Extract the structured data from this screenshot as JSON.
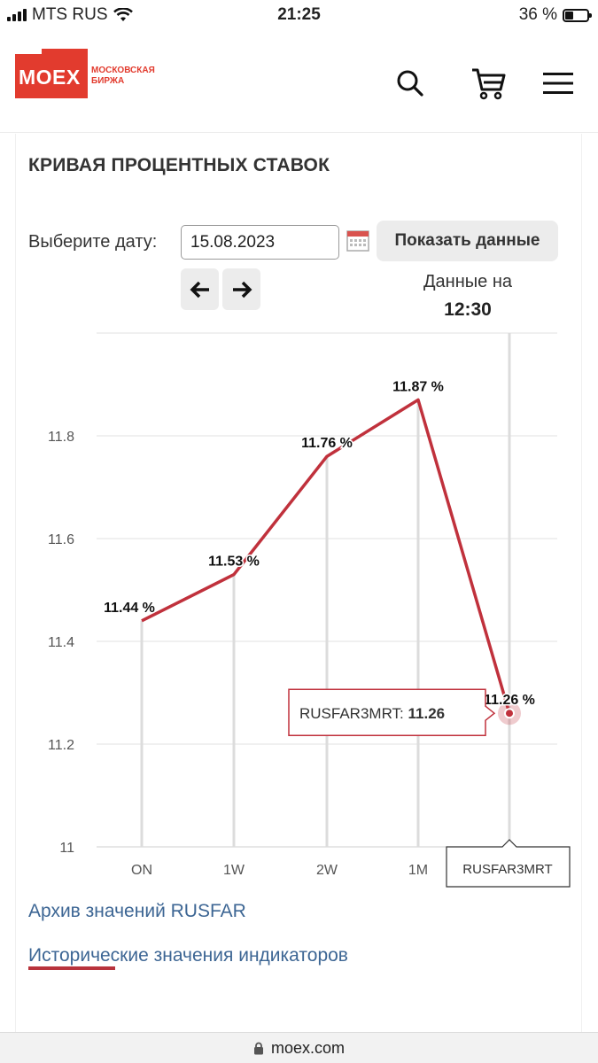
{
  "status_bar": {
    "carrier": "MTS RUS",
    "time": "21:25",
    "battery": "36 %",
    "battery_level": 0.36
  },
  "header": {
    "logo_text": "MOEX",
    "logo_sub_1": "МОСКОВСКАЯ",
    "logo_sub_2": "БИРЖА",
    "icons": [
      "search-icon",
      "cart-icon",
      "menu-icon"
    ]
  },
  "page": {
    "title": "КРИВАЯ ПРОЦЕНТНЫХ СТАВОК",
    "date_label": "Выберите дату:",
    "date_value": "15.08.2023",
    "show_button": "Показать данные",
    "data_on_label": "Данные на",
    "data_on_time": "12:30",
    "links": [
      "Архив значений RUSFAR",
      "Исторические значения индикаторов"
    ]
  },
  "chart_data": {
    "type": "line",
    "categories": [
      "ON",
      "1W",
      "2W",
      "1M",
      "RUSFAR3MRT"
    ],
    "series": [
      {
        "values": [
          11.44,
          11.53,
          11.76,
          11.87,
          11.26
        ],
        "color": "#c0313c"
      }
    ],
    "data_labels": [
      "11.44 %",
      "11.53 %",
      "11.76 %",
      "11.87 %",
      "11.26 %"
    ],
    "y_ticks": [
      "11",
      "11.2",
      "11.4",
      "11.6",
      "11.8"
    ],
    "ylim": [
      11,
      11.9
    ],
    "grid": true,
    "tooltip": {
      "label": "RUSFAR3MRT: ",
      "value": "11.26"
    },
    "x_tooltip": "RUSFAR3MRT",
    "highlighted_index": 4
  },
  "url": {
    "domain": "moex.com"
  }
}
